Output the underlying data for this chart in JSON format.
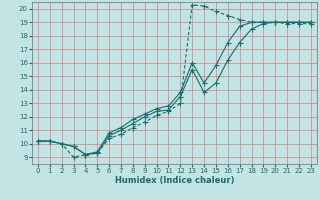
{
  "xlabel": "Humidex (Indice chaleur)",
  "ylabel": "",
  "bg_color": "#c2e4e4",
  "line_color": "#1a6b6b",
  "grid_color": "#e8a0a0",
  "xlim": [
    -0.5,
    23.5
  ],
  "ylim": [
    8.5,
    20.5
  ],
  "xticks": [
    0,
    1,
    2,
    3,
    4,
    5,
    6,
    7,
    8,
    9,
    10,
    11,
    12,
    13,
    14,
    15,
    16,
    17,
    18,
    19,
    20,
    21,
    22,
    23
  ],
  "yticks": [
    9,
    10,
    11,
    12,
    13,
    14,
    15,
    16,
    17,
    18,
    19,
    20
  ],
  "curve_dashed": {
    "x": [
      0,
      1,
      2,
      3,
      4,
      5,
      6,
      7,
      8,
      9,
      10,
      11,
      12,
      13,
      14,
      15,
      16,
      17,
      18,
      19,
      20,
      21,
      22,
      23
    ],
    "y": [
      10.2,
      10.2,
      10.0,
      9.0,
      9.2,
      9.3,
      10.4,
      10.7,
      11.2,
      11.6,
      12.1,
      12.4,
      13.0,
      20.3,
      20.2,
      19.8,
      19.5,
      19.2,
      19.0,
      19.0,
      19.0,
      18.9,
      18.9,
      18.9
    ]
  },
  "curve_solid1": {
    "x": [
      0,
      1,
      2,
      3,
      4,
      5,
      6,
      7,
      8,
      9,
      10,
      11,
      12,
      13,
      14,
      15,
      16,
      17,
      18,
      19,
      20,
      21,
      22,
      23
    ],
    "y": [
      10.2,
      10.2,
      10.0,
      9.8,
      9.2,
      9.3,
      10.6,
      11.0,
      11.5,
      12.0,
      12.4,
      12.5,
      13.5,
      15.5,
      13.8,
      14.5,
      16.2,
      17.5,
      18.5,
      18.9,
      19.0,
      19.0,
      19.0,
      19.0
    ]
  },
  "curve_solid2": {
    "x": [
      0,
      1,
      2,
      3,
      4,
      5,
      6,
      7,
      8,
      9,
      10,
      11,
      12,
      13,
      14,
      15,
      16,
      17,
      18,
      19,
      20,
      21,
      22,
      23
    ],
    "y": [
      10.2,
      10.2,
      10.0,
      9.8,
      9.2,
      9.4,
      10.8,
      11.2,
      11.8,
      12.2,
      12.6,
      12.8,
      13.8,
      16.0,
      14.5,
      15.8,
      17.5,
      18.7,
      19.0,
      19.0,
      19.0,
      19.0,
      19.0,
      19.0
    ]
  }
}
